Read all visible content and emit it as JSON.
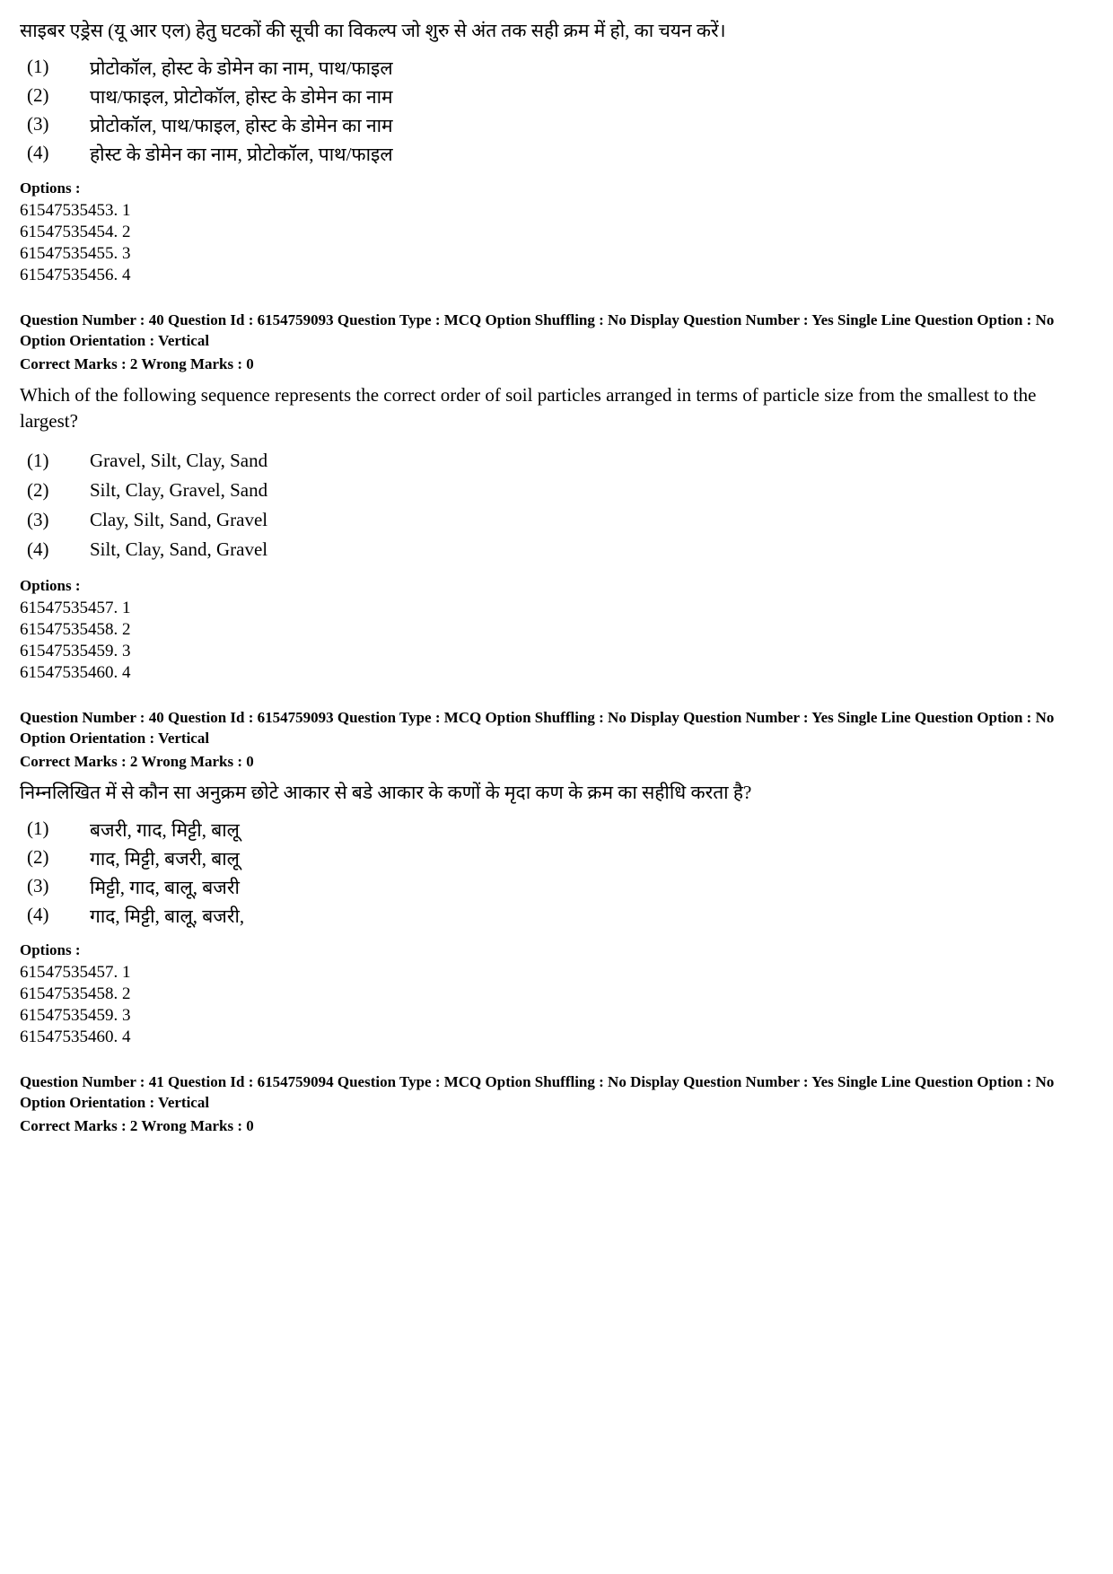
{
  "q1": {
    "text": "साइबर एड्रेस (यू आर एल) हेतु घटकों की सूची का विकल्प जो शुरु से अंत तक सही क्रम में हो, का चयन करें।",
    "choices": [
      {
        "n": "(1)",
        "t": "प्रोटोकॉल, होस्ट के डोमेन का नाम, पाथ/फाइल"
      },
      {
        "n": "(2)",
        "t": "पाथ/फाइल, प्रोटोकॉल, होस्ट के डोमेन का नाम"
      },
      {
        "n": "(3)",
        "t": "प्रोटोकॉल, पाथ/फाइल, होस्ट के डोमेन का नाम"
      },
      {
        "n": "(4)",
        "t": "होस्ट के डोमेन का नाम, प्रोटोकॉल, पाथ/फाइल"
      }
    ],
    "options_label": "Options :",
    "options": [
      "61547535453. 1",
      "61547535454. 2",
      "61547535455. 3",
      "61547535456. 4"
    ]
  },
  "q2": {
    "meta": "Question Number : 40  Question Id : 6154759093  Question Type : MCQ  Option Shuffling : No  Display Question Number : Yes Single Line Question Option : No  Option Orientation : Vertical",
    "marks": "Correct Marks : 2  Wrong Marks : 0",
    "text": "Which of the following sequence represents the correct order of soil particles arranged in terms of particle size from the smallest to the largest?",
    "choices": [
      {
        "n": "(1)",
        "t": "Gravel, Silt, Clay, Sand"
      },
      {
        "n": "(2)",
        "t": "Silt, Clay, Gravel, Sand"
      },
      {
        "n": "(3)",
        "t": "Clay, Silt, Sand, Gravel"
      },
      {
        "n": "(4)",
        "t": "Silt, Clay, Sand, Gravel"
      }
    ],
    "options_label": "Options :",
    "options": [
      "61547535457. 1",
      "61547535458. 2",
      "61547535459. 3",
      "61547535460. 4"
    ]
  },
  "q3": {
    "meta": "Question Number : 40  Question Id : 6154759093  Question Type : MCQ  Option Shuffling : No  Display Question Number : Yes Single Line Question Option : No  Option Orientation : Vertical",
    "marks": "Correct Marks : 2  Wrong Marks : 0",
    "text": "निम्नलिखित में से कौन सा अनुक्रम छोटे आकार से बडे आकार के कणों के मृदा कण के क्रम का सहीधि करता है?",
    "choices": [
      {
        "n": "(1)",
        "t": "बजरी, गाद, मिट्टी, बालू"
      },
      {
        "n": "(2)",
        "t": "गाद, मिट्टी, बजरी, बालू"
      },
      {
        "n": "(3)",
        "t": "मिट्टी, गाद, बालू, बजरी"
      },
      {
        "n": "(4)",
        "t": "गाद, मिट्टी, बालू, बजरी,"
      }
    ],
    "options_label": "Options :",
    "options": [
      "61547535457. 1",
      "61547535458. 2",
      "61547535459. 3",
      "61547535460. 4"
    ]
  },
  "q4": {
    "meta": "Question Number : 41  Question Id : 6154759094  Question Type : MCQ  Option Shuffling : No  Display Question Number : Yes Single Line Question Option : No  Option Orientation : Vertical",
    "marks": "Correct Marks : 2  Wrong Marks : 0"
  }
}
